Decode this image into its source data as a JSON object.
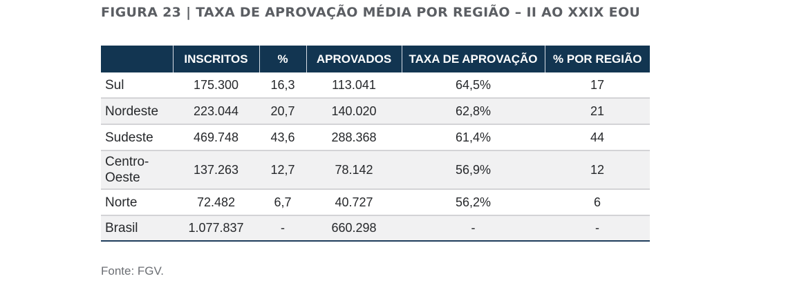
{
  "figure": {
    "title": "FIGURA 23 | TAXA DE APROVAÇÃO MÉDIA POR REGIÃO – II AO XXIX EOU",
    "source": "Fonte: FGV."
  },
  "table": {
    "headers": [
      "",
      "INSCRITOS",
      "%",
      "APROVADOS",
      "TAXA DE APROVAÇÃO",
      "% POR REGIÃO"
    ],
    "rows": [
      [
        "Sul",
        "175.300",
        "16,3",
        "113.041",
        "64,5%",
        "17"
      ],
      [
        "Nordeste",
        "223.044",
        "20,7",
        "140.020",
        "62,8%",
        "21"
      ],
      [
        "Sudeste",
        "469.748",
        "43,6",
        "288.368",
        "61,4%",
        "44"
      ],
      [
        "Centro-Oeste",
        "137.263",
        "12,7",
        "78.142",
        "56,9%",
        "12"
      ],
      [
        "Norte",
        "72.482",
        "6,7",
        "40.727",
        "56,2%",
        "6"
      ],
      [
        "Brasil",
        "1.077.837",
        "-",
        "660.298",
        "-",
        "-"
      ]
    ]
  },
  "colors": {
    "header_bg": "#123551",
    "header_text": "#ffffff",
    "stripe": "#f1f1f2",
    "title": "#5b5e63"
  }
}
